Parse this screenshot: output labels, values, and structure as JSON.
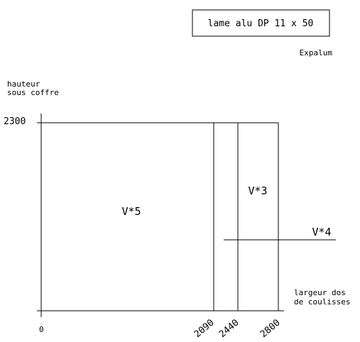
{
  "title_box": {
    "text": "lame alu DP 11 x 50"
  },
  "brand": "Expalum",
  "y_axis": {
    "label_line1": "hauteur",
    "label_line2": "sous coffre",
    "max_tick": "2300"
  },
  "x_axis": {
    "label_line1": "largeur dos",
    "label_line2": "de coulisses",
    "ticks": [
      "0",
      "2090",
      "2440",
      "2800"
    ]
  },
  "zones": {
    "zone_1": "V*5",
    "zone_2": "V*3",
    "zone_3": "V*4"
  },
  "colors": {
    "line": "#000000",
    "background": "#ffffff"
  }
}
